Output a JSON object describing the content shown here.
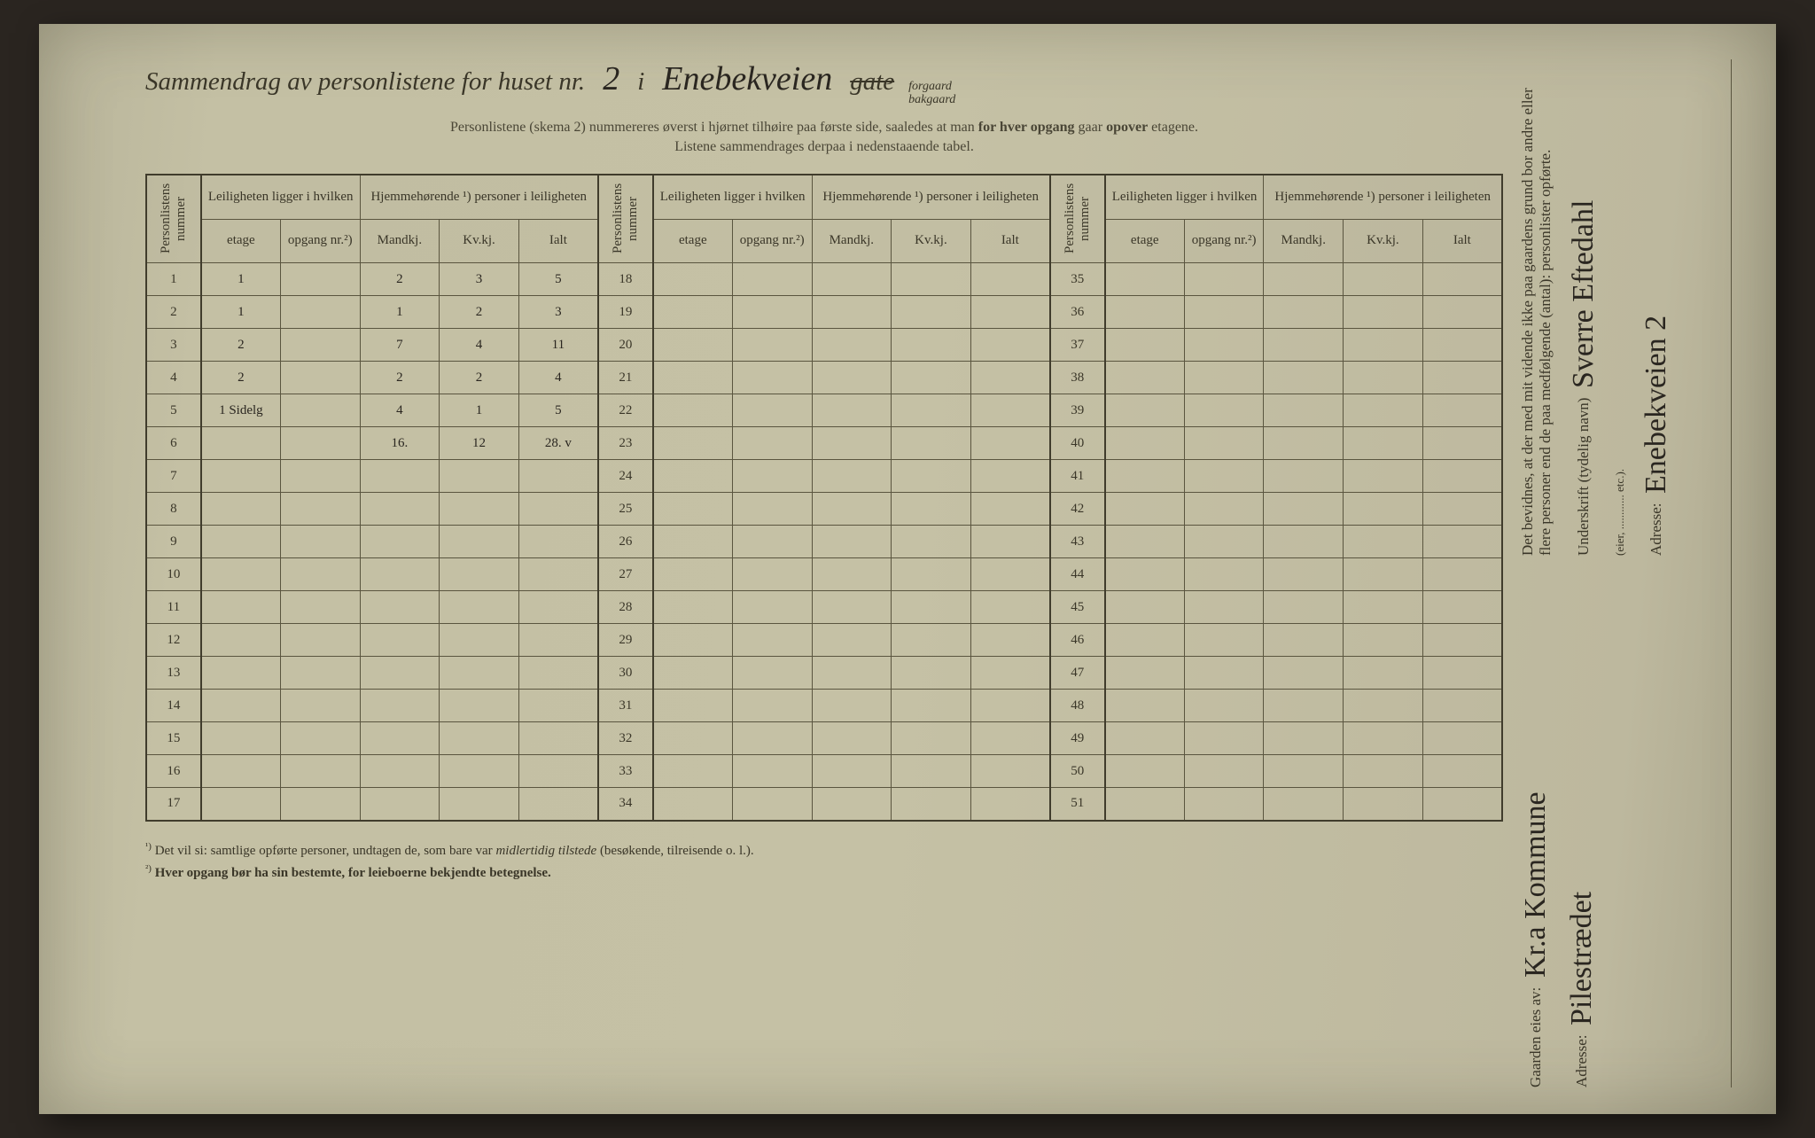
{
  "title": {
    "prefix": "Sammendrag av personlistene for huset nr.",
    "house_nr": "2",
    "sep": "i",
    "street": "Enebekveien",
    "word_gate": "gate",
    "forgaard": "forgaard",
    "bakgaard": "bakgaard"
  },
  "instructions": {
    "line1a": "Personlistene (skema 2) nummereres øverst i hjørnet tilhøire paa første side, saaledes at man ",
    "line1b": "for hver opgang",
    "line1c": " gaar ",
    "line1d": "opover",
    "line1e": " etagene.",
    "line2": "Listene sammendrages derpaa i nedenstaaende tabel."
  },
  "headers": {
    "personlistens": "Personlistens nummer",
    "leiligheten": "Leiligheten ligger i hvilken",
    "hjemme": "Hjemmehørende ¹) personer i leiligheten",
    "etage": "etage",
    "opgang": "opgang nr.²)",
    "mandkj": "Mandkj.",
    "kvkj": "Kv.kj.",
    "ialt": "Ialt"
  },
  "rows": [
    {
      "n": "1",
      "etage": "1",
      "opg": "",
      "m": "2",
      "k": "3",
      "i": "5"
    },
    {
      "n": "2",
      "etage": "1",
      "opg": "",
      "m": "1",
      "k": "2",
      "i": "3"
    },
    {
      "n": "3",
      "etage": "2",
      "opg": "",
      "m": "7",
      "k": "4",
      "i": "11"
    },
    {
      "n": "4",
      "etage": "2",
      "opg": "",
      "m": "2",
      "k": "2",
      "i": "4"
    },
    {
      "n": "5",
      "etage": "1 Sidelg",
      "opg": "",
      "m": "4",
      "k": "1",
      "i": "5"
    }
  ],
  "totals": {
    "m": "16.",
    "k": "12",
    "i": "28. v"
  },
  "blank_rows_1": [
    "6",
    "7",
    "8",
    "9",
    "10",
    "11",
    "12",
    "13",
    "14",
    "15",
    "16",
    "17"
  ],
  "col2_rows": [
    "18",
    "19",
    "20",
    "21",
    "22",
    "23",
    "24",
    "25",
    "26",
    "27",
    "28",
    "29",
    "30",
    "31",
    "32",
    "33",
    "34"
  ],
  "col3_rows": [
    "35",
    "36",
    "37",
    "38",
    "39",
    "40",
    "41",
    "42",
    "43",
    "44",
    "45",
    "46",
    "47",
    "48",
    "49",
    "50",
    "51"
  ],
  "footnotes": {
    "f1_sup": "¹)",
    "f1": "Det vil si: samtlige opførte personer, undtagen de, som bare var ",
    "f1_i": "midlertidig tilstede",
    "f1_end": " (besøkende, tilreisende o. l.).",
    "f2_sup": "²)",
    "f2": "Hver opgang bør ha sin bestemte, for leieboerne bekjendte betegnelse."
  },
  "side": {
    "gaarden_label": "Gaarden eies av:",
    "gaarden_value": "Kr.a Kommune",
    "adresse_label": "Adresse:",
    "adresse_value1": "Pilestrædet",
    "bevidnes": "Det bevidnes, at der med mit vidende ikke paa gaardens grund bor andre eller flere personer end de paa medfølgende (antal):",
    "personlister": "personlister opførte.",
    "underskrift_label": "Underskrift (tydelig navn)",
    "underskrift_value": "Sverre Eftedahl",
    "eier_etc": "(eier, ............ etc.).",
    "adresse2_label": "Adresse:",
    "adresse2_value": "Enebekveien 2"
  }
}
